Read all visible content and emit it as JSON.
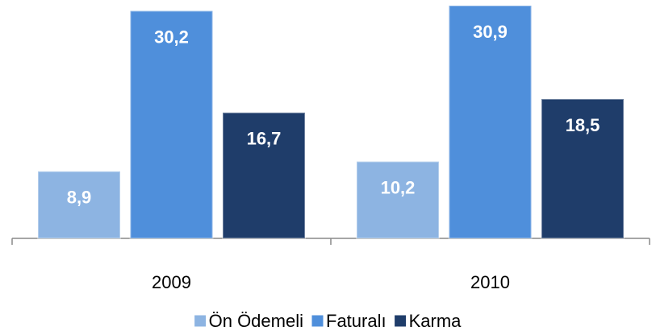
{
  "chart_data": {
    "type": "bar",
    "categories": [
      "2009",
      "2010"
    ],
    "series": [
      {
        "name": "Ön Ödemeli",
        "color": "#8db4e2",
        "values": [
          8.9,
          10.2
        ],
        "value_labels": [
          "8,9",
          "10,2"
        ]
      },
      {
        "name": "Faturalı",
        "color": "#4f8fdb",
        "values": [
          30.2,
          30.9
        ],
        "value_labels": [
          "30,2",
          "30,9"
        ]
      },
      {
        "name": "Karma",
        "color": "#1f3d6a",
        "values": [
          16.7,
          18.5
        ],
        "value_labels": [
          "16,7",
          "18,5"
        ]
      }
    ]
  }
}
